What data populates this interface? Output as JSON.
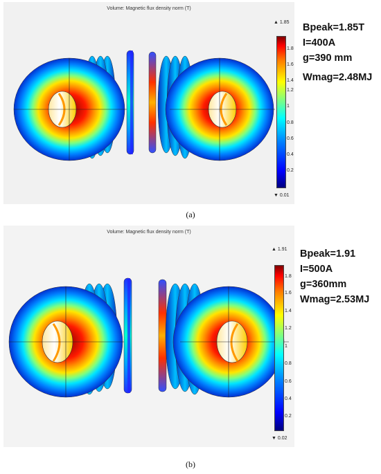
{
  "figures": [
    {
      "id": "a",
      "plot_title": "Volume: Magnetic flux density norm (T)",
      "colorbar_max": "▲ 1.85",
      "colorbar_min": "▼ 0.01",
      "colorbar_ticks": [
        "1.8",
        "1.6",
        "1.4",
        "1.2",
        "1",
        "0.8",
        "0.6",
        "0.4",
        "0.2"
      ],
      "params": [
        "Bpeak=1.85T",
        "I=400A",
        "g=390 mm",
        "Wmag=2.48MJ"
      ],
      "caption": "(a)"
    },
    {
      "id": "b",
      "plot_title": "Volume: Magnetic flux density norm (T)",
      "colorbar_max": "▲ 1.91",
      "colorbar_min": "▼ 0.02",
      "colorbar_ticks": [
        "1.8",
        "1.6",
        "1.4",
        "1.2",
        "1",
        "0.8",
        "0.6",
        "0.4",
        "0.2"
      ],
      "params": [
        "Bpeak=1.91",
        "I=500A",
        "g=360mm",
        "Wmag=2.53MJ"
      ],
      "caption": "(b)"
    }
  ],
  "colors": {
    "low": "#00007f",
    "mid": "#00ffff",
    "high": "#ff0000",
    "peak": "#7f0000"
  }
}
